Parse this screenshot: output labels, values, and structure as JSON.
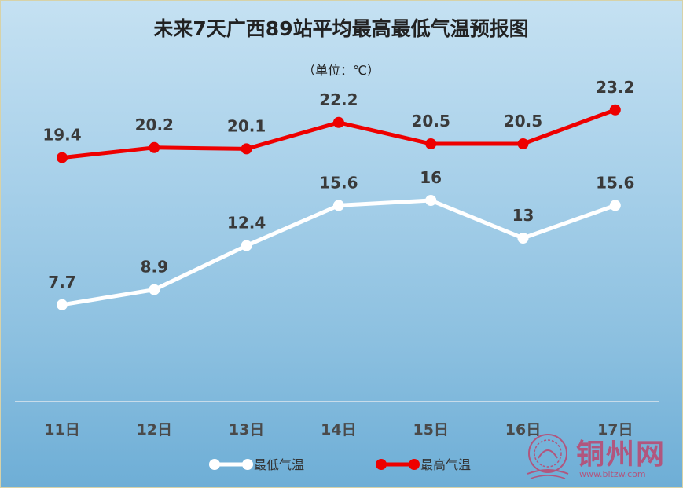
{
  "chart_data": {
    "type": "line",
    "title": "未来7天广西89站平均最高最低气温预报图",
    "subtitle": "（单位：℃）",
    "categories": [
      "11日",
      "12日",
      "13日",
      "14日",
      "15日",
      "16日",
      "17日"
    ],
    "ylim": [
      0,
      25
    ],
    "grid": false,
    "legend_position": "bottom",
    "series": [
      {
        "name": "最低气温",
        "color": "#ffffff",
        "values": [
          7.7,
          8.9,
          12.4,
          15.6,
          16,
          13,
          15.6
        ]
      },
      {
        "name": "最高气温",
        "color": "#ee0000",
        "values": [
          19.4,
          20.2,
          20.1,
          22.2,
          20.5,
          20.5,
          23.2
        ]
      }
    ]
  },
  "watermark": {
    "logo_icon": "tongzhou-logo-icon",
    "text": "铜州网",
    "url": "www.bltzw.com"
  }
}
